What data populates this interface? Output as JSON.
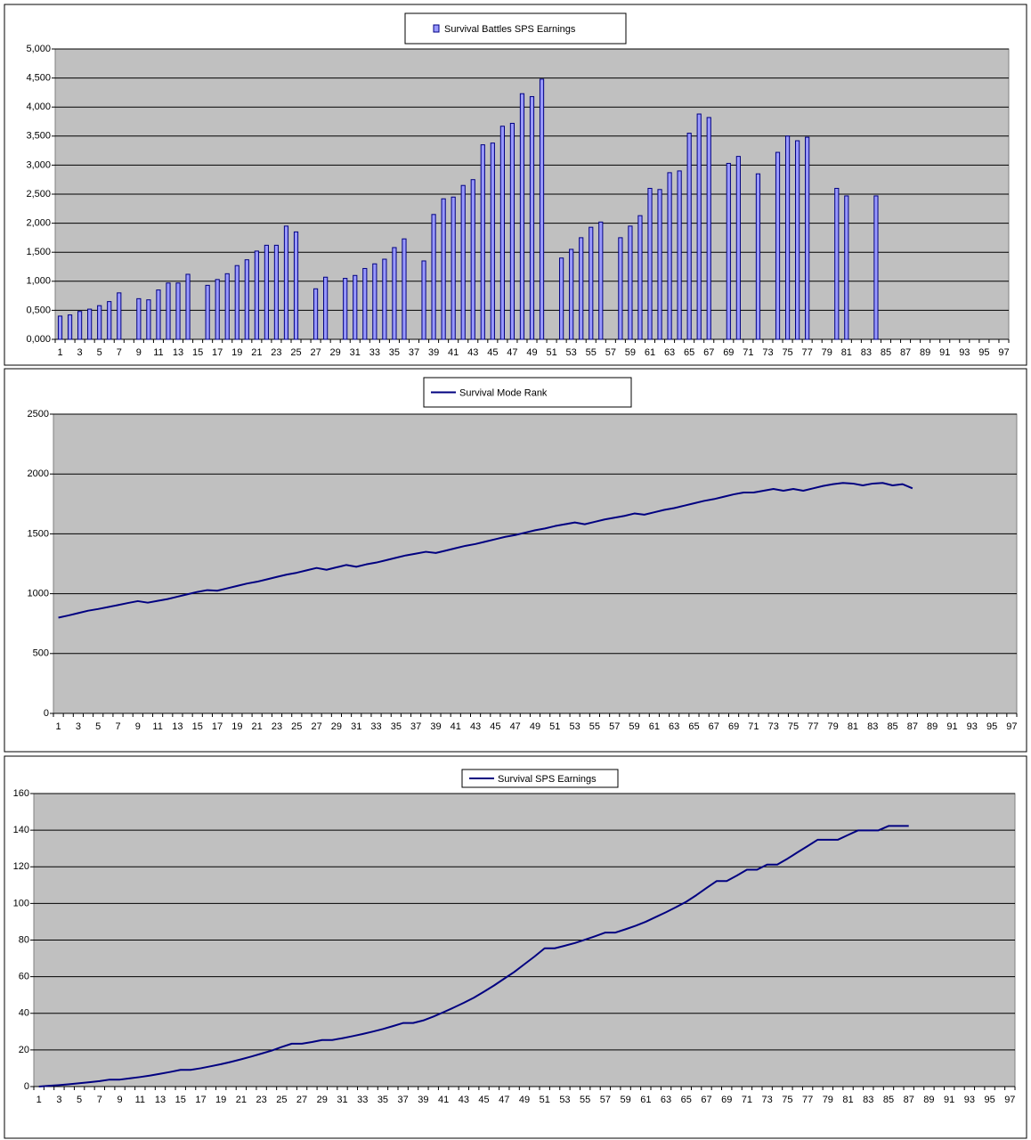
{
  "chart_data": [
    {
      "type": "bar",
      "categories": [
        1,
        null,
        3,
        null,
        5,
        null,
        7,
        null,
        9,
        null,
        11,
        null,
        13,
        null,
        15,
        null,
        17,
        null,
        19,
        null,
        21,
        null,
        23,
        null,
        25,
        null,
        27,
        null,
        29,
        null,
        31,
        null,
        33,
        null,
        35,
        null,
        37,
        null,
        39,
        null,
        41,
        null,
        43,
        null,
        45,
        null,
        47,
        null,
        49,
        null,
        51,
        null,
        53,
        null,
        55,
        null,
        57,
        null,
        59,
        null,
        61,
        null,
        63,
        null,
        65,
        null,
        67,
        null,
        69,
        null,
        71,
        null,
        73,
        null,
        75,
        null,
        77,
        null,
        79,
        null,
        81,
        null,
        83,
        null,
        85,
        null,
        87,
        null,
        89,
        null,
        91,
        null,
        93,
        null,
        95,
        null,
        97
      ],
      "series": [
        {
          "name": "Survival Battles SPS Earnings",
          "color": "#9999ff",
          "values": [
            0.4,
            0.42,
            0.48,
            0.52,
            0.58,
            0.65,
            0.8,
            null,
            0.7,
            0.68,
            0.85,
            0.97,
            0.97,
            1.12,
            null,
            0.93,
            1.03,
            1.13,
            1.27,
            1.37,
            1.52,
            1.62,
            1.62,
            1.95,
            1.85,
            null,
            0.87,
            1.07,
            null,
            1.05,
            1.1,
            1.22,
            1.3,
            1.38,
            1.58,
            1.73,
            null,
            1.35,
            2.15,
            2.42,
            2.45,
            2.65,
            2.75,
            3.35,
            3.38,
            3.67,
            3.72,
            4.23,
            4.18,
            4.48,
            null,
            1.4,
            1.55,
            1.75,
            1.93,
            2.02,
            null,
            1.75,
            1.95,
            2.13,
            2.6,
            2.58,
            2.87,
            2.9,
            3.55,
            3.88,
            3.82,
            null,
            3.03,
            3.15,
            null,
            2.85,
            null,
            3.22,
            3.5,
            3.42,
            3.48,
            null,
            null,
            2.6,
            2.47,
            null,
            null,
            2.47,
            null,
            null,
            null,
            null,
            null,
            null,
            null,
            null,
            null,
            null,
            null,
            null,
            null
          ]
        }
      ],
      "ylim": [
        0,
        5
      ],
      "yticks": [
        {
          "value": 0,
          "label": "0,000"
        },
        {
          "value": 0.5,
          "label": "0,500"
        },
        {
          "value": 1,
          "label": "1,000"
        },
        {
          "value": 1.5,
          "label": "1,500"
        },
        {
          "value": 2,
          "label": "2,000"
        },
        {
          "value": 2.5,
          "label": "2,500"
        },
        {
          "value": 3,
          "label": "3,000"
        },
        {
          "value": 3.5,
          "label": "3,500"
        },
        {
          "value": 4,
          "label": "4,000"
        },
        {
          "value": 4.5,
          "label": "4,500"
        },
        {
          "value": 5,
          "label": "5,000"
        }
      ],
      "grid": true
    },
    {
      "type": "line",
      "categories": [
        1,
        null,
        3,
        null,
        5,
        null,
        7,
        null,
        9,
        null,
        11,
        null,
        13,
        null,
        15,
        null,
        17,
        null,
        19,
        null,
        21,
        null,
        23,
        null,
        25,
        null,
        27,
        null,
        29,
        null,
        31,
        null,
        33,
        null,
        35,
        null,
        37,
        null,
        39,
        null,
        41,
        null,
        43,
        null,
        45,
        null,
        47,
        null,
        49,
        null,
        51,
        null,
        53,
        null,
        55,
        null,
        57,
        null,
        59,
        null,
        61,
        null,
        63,
        null,
        65,
        null,
        67,
        null,
        69,
        null,
        71,
        null,
        73,
        null,
        75,
        null,
        77,
        null,
        79,
        null,
        81,
        null,
        83,
        null,
        85,
        null,
        87,
        null,
        89,
        null,
        91,
        null,
        93,
        null,
        95,
        null,
        97
      ],
      "series": [
        {
          "name": "Survival Mode Rank",
          "color": "#000080",
          "values": [
            800,
            818,
            838,
            858,
            872,
            888,
            905,
            922,
            938,
            925,
            940,
            955,
            975,
            995,
            1015,
            1030,
            1025,
            1045,
            1065,
            1085,
            1100,
            1120,
            1140,
            1160,
            1175,
            1195,
            1215,
            1200,
            1220,
            1240,
            1225,
            1245,
            1260,
            1280,
            1300,
            1320,
            1335,
            1350,
            1340,
            1360,
            1380,
            1400,
            1415,
            1435,
            1455,
            1475,
            1490,
            1510,
            1530,
            1545,
            1565,
            1580,
            1595,
            1580,
            1600,
            1620,
            1635,
            1650,
            1670,
            1660,
            1680,
            1700,
            1715,
            1735,
            1755,
            1775,
            1790,
            1810,
            1830,
            1845,
            1845,
            1860,
            1875,
            1860,
            1875,
            1860,
            1880,
            1900,
            1915,
            1925,
            1920,
            1905,
            1920,
            1925,
            1905,
            1915,
            1880,
            null,
            null,
            null,
            null,
            null,
            null,
            null,
            null,
            null,
            null
          ]
        }
      ],
      "ylim": [
        0,
        2500
      ],
      "yticks": [
        0,
        500,
        1000,
        1500,
        2000,
        2500
      ],
      "grid": true
    },
    {
      "type": "line",
      "categories": [
        1,
        null,
        3,
        null,
        5,
        null,
        7,
        null,
        9,
        null,
        11,
        null,
        13,
        null,
        15,
        null,
        17,
        null,
        19,
        null,
        21,
        null,
        23,
        null,
        25,
        null,
        27,
        null,
        29,
        null,
        31,
        null,
        33,
        null,
        35,
        null,
        37,
        null,
        39,
        null,
        41,
        null,
        43,
        null,
        45,
        null,
        47,
        null,
        49,
        null,
        51,
        null,
        53,
        null,
        55,
        null,
        57,
        null,
        59,
        null,
        61,
        null,
        63,
        null,
        65,
        null,
        67,
        null,
        69,
        null,
        71,
        null,
        73,
        null,
        75,
        null,
        77,
        null,
        79,
        null,
        81,
        null,
        83,
        null,
        85,
        null,
        87,
        null,
        89,
        null,
        91,
        null,
        93,
        null,
        95,
        null,
        97
      ],
      "series": [
        {
          "name": "Survival SPS Earnings",
          "color": "#000080",
          "values": [
            0,
            0.4,
            0.8,
            1.3,
            1.8,
            2.4,
            3.0,
            3.8,
            3.8,
            4.5,
            5.2,
            6.0,
            7.0,
            8.0,
            9.1,
            9.1,
            10.0,
            11.1,
            12.2,
            13.5,
            14.9,
            16.4,
            18.0,
            19.6,
            21.6,
            23.4,
            23.4,
            24.3,
            25.4,
            25.4,
            26.4,
            27.5,
            28.7,
            30.0,
            31.4,
            33.0,
            34.7,
            34.7,
            36.1,
            38.2,
            40.6,
            43.1,
            45.7,
            48.5,
            51.8,
            55.2,
            58.9,
            62.6,
            66.8,
            71.0,
            75.5,
            75.5,
            76.9,
            78.4,
            80.2,
            82.1,
            84.1,
            84.1,
            85.9,
            87.8,
            90.0,
            92.6,
            95.2,
            98.0,
            100.9,
            104.5,
            108.4,
            112.2,
            112.2,
            115.2,
            118.4,
            118.4,
            121.2,
            121.2,
            124.4,
            127.9,
            131.3,
            134.8,
            134.8,
            134.8,
            137.4,
            139.9,
            139.9,
            139.9,
            142.3,
            142.3,
            142.3,
            null,
            null,
            null,
            null,
            null,
            null,
            null,
            null,
            null,
            null
          ]
        }
      ],
      "ylim": [
        0,
        160
      ],
      "yticks": [
        0,
        20,
        40,
        60,
        80,
        100,
        120,
        140,
        160
      ],
      "grid": true
    }
  ]
}
